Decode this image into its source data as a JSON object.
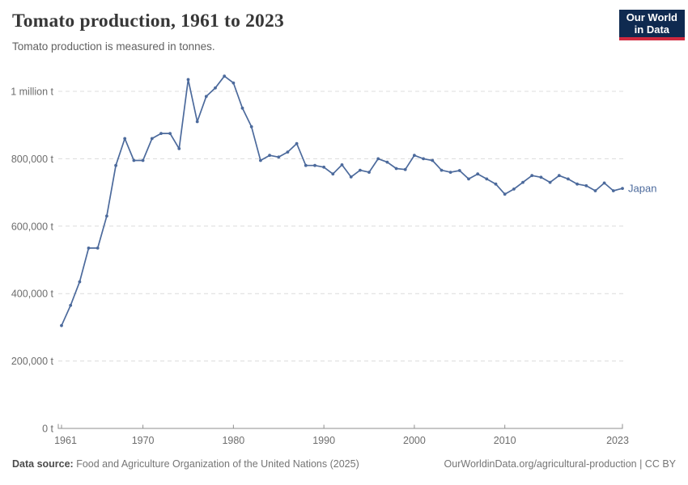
{
  "header": {
    "title": "Tomato production, 1961 to 2023",
    "subtitle": "Tomato production is measured in tonnes.",
    "logo": {
      "line1": "Our World",
      "line2": "in Data"
    }
  },
  "chart_data": {
    "type": "line",
    "title": "Tomato production, 1961 to 2023",
    "subtitle": "Tomato production is measured in tonnes.",
    "unit": "tonnes",
    "xlim": [
      1961,
      2023
    ],
    "ylim": [
      0,
      1000000
    ],
    "grid": "horizontal-dashed",
    "legend": "end-of-line-label",
    "y_ticks": [
      {
        "value": 0,
        "label": "0 t"
      },
      {
        "value": 200000,
        "label": "200,000 t"
      },
      {
        "value": 400000,
        "label": "400,000 t"
      },
      {
        "value": 600000,
        "label": "600,000 t"
      },
      {
        "value": 800000,
        "label": "800,000 t"
      },
      {
        "value": 1000000,
        "label": "1 million t"
      }
    ],
    "x_ticks": [
      {
        "value": 1961,
        "label": "1961"
      },
      {
        "value": 1970,
        "label": "1970"
      },
      {
        "value": 1980,
        "label": "1980"
      },
      {
        "value": 1990,
        "label": "1990"
      },
      {
        "value": 2000,
        "label": "2000"
      },
      {
        "value": 2010,
        "label": "2010"
      },
      {
        "value": 2023,
        "label": "2023"
      }
    ],
    "series": [
      {
        "name": "Japan",
        "color": "#4c6a9c",
        "x": [
          1961,
          1962,
          1963,
          1964,
          1965,
          1966,
          1967,
          1968,
          1969,
          1970,
          1971,
          1972,
          1973,
          1974,
          1975,
          1976,
          1977,
          1978,
          1979,
          1980,
          1981,
          1982,
          1983,
          1984,
          1985,
          1986,
          1987,
          1988,
          1989,
          1990,
          1991,
          1992,
          1993,
          1994,
          1995,
          1996,
          1997,
          1998,
          1999,
          2000,
          2001,
          2002,
          2003,
          2004,
          2005,
          2006,
          2007,
          2008,
          2009,
          2010,
          2011,
          2012,
          2013,
          2014,
          2015,
          2016,
          2017,
          2018,
          2019,
          2020,
          2021,
          2022,
          2023
        ],
        "values": [
          305000,
          365000,
          435000,
          535000,
          535000,
          630000,
          780000,
          860000,
          795000,
          795000,
          860000,
          875000,
          875000,
          830000,
          1035000,
          910000,
          985000,
          1010000,
          1045000,
          1025000,
          950000,
          895000,
          795000,
          810000,
          805000,
          820000,
          845000,
          780000,
          780000,
          775000,
          755000,
          782000,
          746000,
          766000,
          760000,
          800000,
          790000,
          771000,
          768000,
          810000,
          800000,
          795000,
          766000,
          760000,
          765000,
          740000,
          755000,
          740000,
          725000,
          695000,
          710000,
          730000,
          750000,
          745000,
          730000,
          750000,
          740000,
          725000,
          720000,
          705000,
          728000,
          705000,
          712000
        ]
      }
    ]
  },
  "footer": {
    "datasource_label": "Data source:",
    "datasource": "Food and Agriculture Organization of the United Nations (2025)",
    "link": "OurWorldinData.org/agricultural-production | CC BY"
  },
  "colors": {
    "line": "#4c6a9c",
    "entity_label": "#4c6a9c",
    "gridline": "#dcdcdc",
    "axis": "#8f8f8f",
    "tick_label": "#6d6d6d",
    "title": "#373737",
    "subtitle": "#616161",
    "logo_bg": "#0f2a50",
    "logo_red": "#d0293e"
  }
}
